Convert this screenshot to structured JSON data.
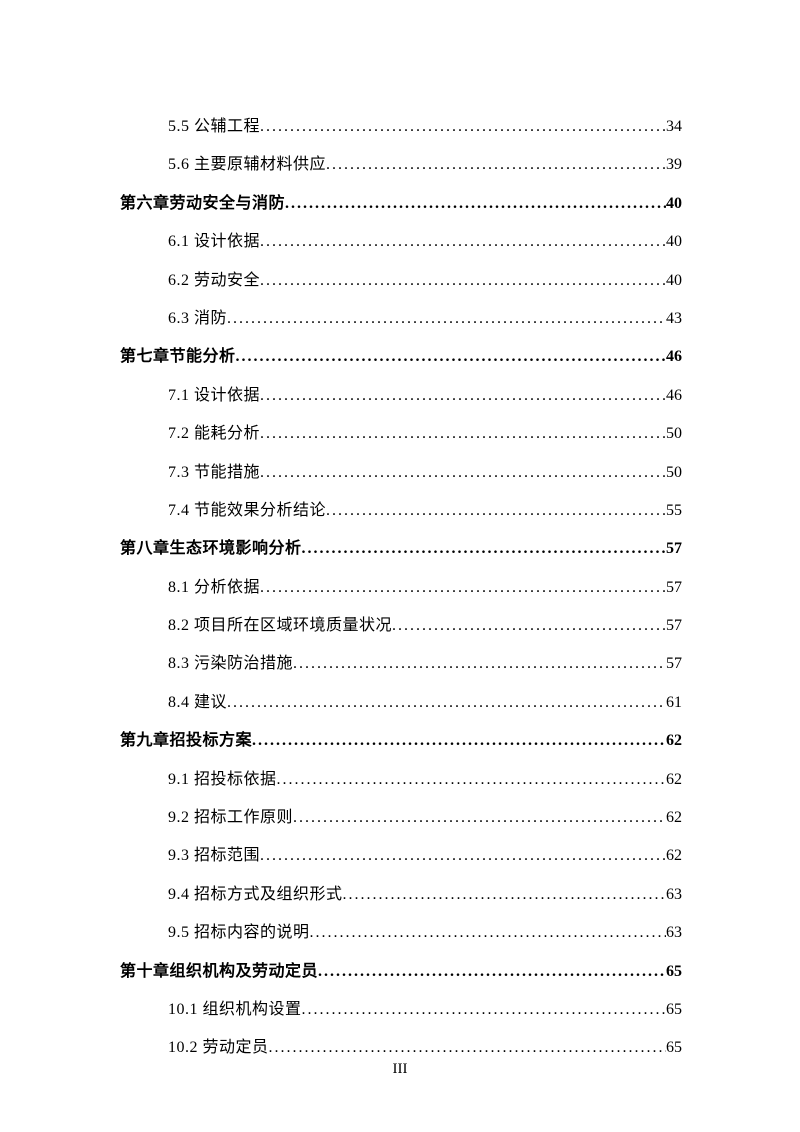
{
  "entries": [
    {
      "level": "section",
      "title": "5.5 公辅工程",
      "page": "34"
    },
    {
      "level": "section",
      "title": "5.6 主要原辅材料供应",
      "page": "39"
    },
    {
      "level": "chapter",
      "title": "第六章劳动安全与消防",
      "page": "40"
    },
    {
      "level": "section",
      "title": "6.1 设计依据",
      "page": "40"
    },
    {
      "level": "section",
      "title": "6.2 劳动安全",
      "page": "40"
    },
    {
      "level": "section",
      "title": "6.3 消防",
      "page": "43"
    },
    {
      "level": "chapter",
      "title": "第七章节能分析",
      "page": "46"
    },
    {
      "level": "section",
      "title": "7.1 设计依据",
      "page": "46"
    },
    {
      "level": "section",
      "title": "7.2 能耗分析",
      "page": "50"
    },
    {
      "level": "section",
      "title": "7.3 节能措施",
      "page": "50"
    },
    {
      "level": "section",
      "title": "7.4 节能效果分析结论",
      "page": "55"
    },
    {
      "level": "chapter",
      "title": "第八章生态环境影响分析",
      "page": "57"
    },
    {
      "level": "section",
      "title": "8.1 分析依据",
      "page": "57"
    },
    {
      "level": "section",
      "title": "8.2 项目所在区域环境质量状况",
      "page": "57"
    },
    {
      "level": "section",
      "title": "8.3 污染防治措施",
      "page": "57"
    },
    {
      "level": "section",
      "title": "8.4 建议",
      "page": "61"
    },
    {
      "level": "chapter",
      "title": "第九章招投标方案",
      "page": "62"
    },
    {
      "level": "section",
      "title": "9.1 招投标依据",
      "page": "62"
    },
    {
      "level": "section",
      "title": "9.2 招标工作原则",
      "page": "62"
    },
    {
      "level": "section",
      "title": "9.3 招标范围",
      "page": "62"
    },
    {
      "level": "section",
      "title": "9.4 招标方式及组织形式",
      "page": "63"
    },
    {
      "level": "section",
      "title": "9.5 招标内容的说明",
      "page": "63"
    },
    {
      "level": "chapter",
      "title": "第十章组织机构及劳动定员",
      "page": "65"
    },
    {
      "level": "section",
      "title": "10.1 组织机构设置",
      "page": "65"
    },
    {
      "level": "section",
      "title": "10.2 劳动定员",
      "page": "65"
    }
  ],
  "page_number": "III",
  "colors": {
    "text": "#000000",
    "background": "#ffffff"
  },
  "typography": {
    "base_fontsize": 16,
    "font_family": "SimSun"
  }
}
